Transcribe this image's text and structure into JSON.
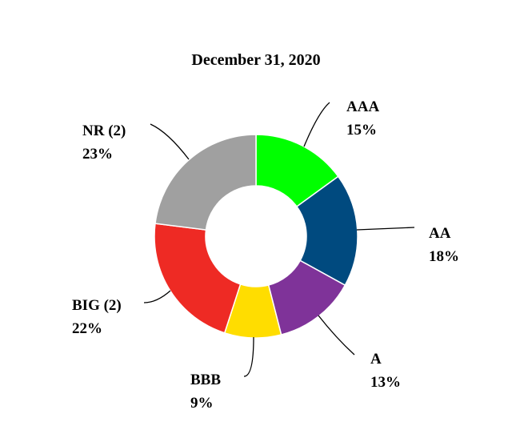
{
  "chart_data": {
    "type": "pie",
    "title": "December 31, 2020",
    "donut": true,
    "categories": [
      "AAA",
      "AA",
      "A",
      "BBB",
      "BIG (2)",
      "NR (2)"
    ],
    "values": [
      15,
      18,
      13,
      9,
      22,
      23
    ],
    "value_labels": [
      "15%",
      "18%",
      "13%",
      "9%",
      "22%",
      "23%"
    ],
    "colors": [
      "#00FF00",
      "#004A7F",
      "#7F3399",
      "#FFDD00",
      "#EE2A24",
      "#A0A0A0"
    ],
    "legend": "none",
    "label_placement": "outside with leader lines"
  }
}
